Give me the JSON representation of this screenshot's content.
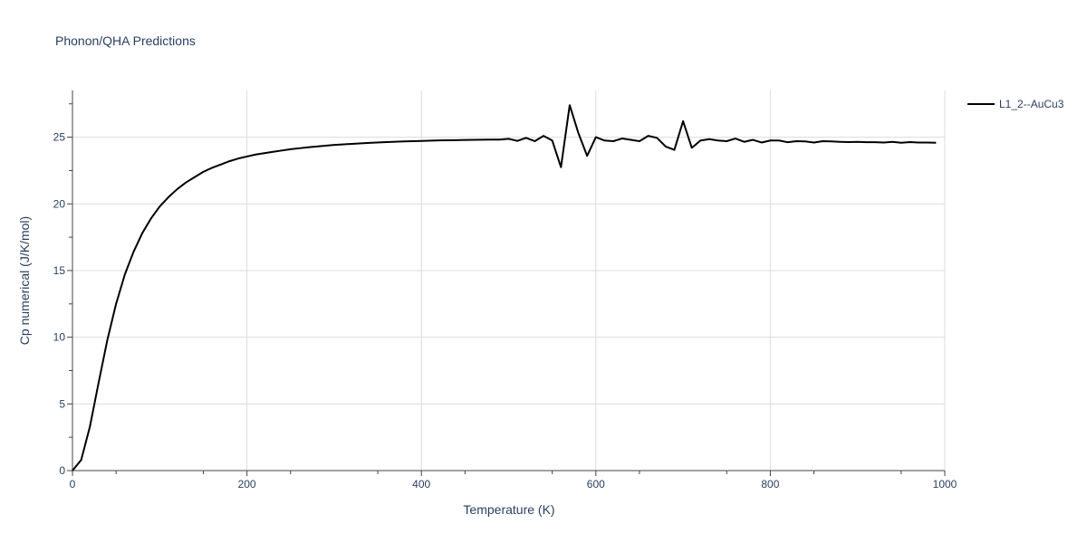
{
  "chart_data": {
    "type": "line",
    "title": "Phonon/QHA Predictions",
    "xlabel": "Temperature (K)",
    "ylabel": "Cp numerical (J/K/mol)",
    "xlim": [
      0,
      1000
    ],
    "ylim": [
      0,
      28.5
    ],
    "x_ticks": [
      0,
      200,
      400,
      600,
      800,
      1000
    ],
    "y_ticks": [
      0,
      5,
      10,
      15,
      20,
      25
    ],
    "grid": true,
    "legend_position": "top-right",
    "series": [
      {
        "name": "L1_2--AuCu3",
        "color": "#000000",
        "x": [
          0,
          10,
          20,
          30,
          40,
          50,
          60,
          70,
          80,
          90,
          100,
          110,
          120,
          130,
          140,
          150,
          160,
          170,
          180,
          190,
          200,
          210,
          220,
          230,
          240,
          250,
          260,
          270,
          280,
          290,
          300,
          320,
          340,
          360,
          380,
          400,
          420,
          440,
          460,
          480,
          490,
          500,
          510,
          520,
          530,
          540,
          550,
          560,
          570,
          580,
          590,
          600,
          610,
          620,
          630,
          640,
          650,
          660,
          670,
          680,
          690,
          700,
          710,
          720,
          730,
          740,
          750,
          760,
          770,
          780,
          790,
          800,
          810,
          820,
          830,
          840,
          850,
          860,
          870,
          880,
          890,
          900,
          910,
          920,
          930,
          940,
          950,
          960,
          970,
          980,
          990
        ],
        "y": [
          0,
          0.8,
          3.3,
          6.6,
          9.8,
          12.5,
          14.7,
          16.4,
          17.8,
          18.9,
          19.8,
          20.5,
          21.1,
          21.6,
          22.0,
          22.4,
          22.7,
          22.95,
          23.2,
          23.4,
          23.55,
          23.7,
          23.8,
          23.9,
          24.0,
          24.1,
          24.17,
          24.24,
          24.3,
          24.36,
          24.42,
          24.5,
          24.57,
          24.63,
          24.68,
          24.72,
          24.76,
          24.78,
          24.8,
          24.82,
          24.82,
          24.88,
          24.72,
          24.95,
          24.7,
          25.1,
          24.75,
          22.75,
          27.4,
          25.3,
          23.6,
          25.0,
          24.75,
          24.7,
          24.9,
          24.8,
          24.7,
          25.1,
          24.95,
          24.3,
          24.05,
          26.2,
          24.2,
          24.75,
          24.85,
          24.75,
          24.7,
          24.9,
          24.65,
          24.8,
          24.6,
          24.75,
          24.75,
          24.62,
          24.7,
          24.68,
          24.6,
          24.7,
          24.68,
          24.65,
          24.63,
          24.65,
          24.62,
          24.62,
          24.6,
          24.65,
          24.58,
          24.63,
          24.6,
          24.6,
          24.58
        ]
      }
    ]
  }
}
